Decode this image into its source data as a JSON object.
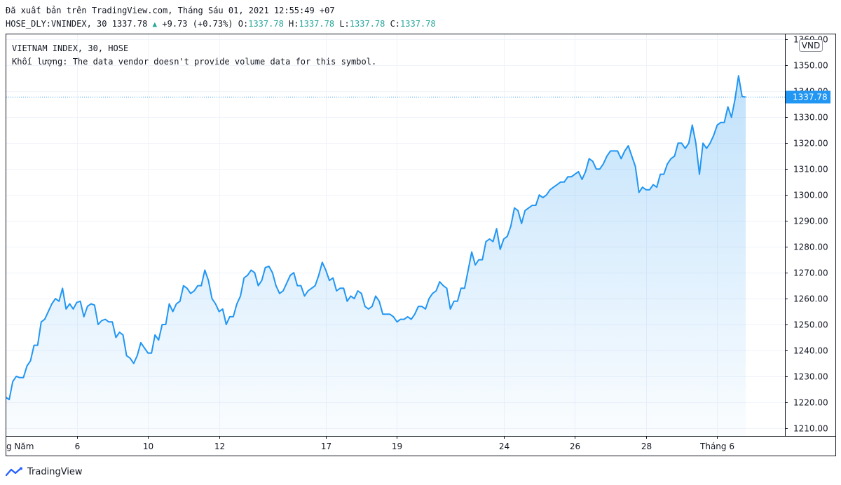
{
  "header": {
    "published_line": "Đã xuất bản trên TradingView.com, Tháng Sáu 01, 2021 12:55:49 +07",
    "symbol_interval": "HOSE_DLY:VNINDEX, 30 1337.78",
    "change": "+9.73 (+0.73%)",
    "o_label": "O:",
    "o_value": "1337.78",
    "h_label": "H:",
    "h_value": "1337.78",
    "l_label": "L:",
    "l_value": "1337.78",
    "c_label": "C:",
    "c_value": "1337.78"
  },
  "legend": {
    "title": "VIETNAM INDEX, 30, HOSE",
    "volume_note": "Khối lượng: The data vendor doesn't provide volume data for this symbol."
  },
  "currency_badge": "VND",
  "last_price_label": "1337.78",
  "footer": {
    "brand": "TradingView"
  },
  "colors": {
    "line": "#2196f3",
    "area": "#2196f3",
    "green": "#26a69a",
    "grid": "#f0f3fa"
  },
  "chart_data": {
    "type": "area",
    "title": "VIETNAM INDEX, 30, HOSE",
    "xlabel": "",
    "ylabel": "",
    "ylim": [
      1207,
      1362
    ],
    "y_ticks": [
      1210,
      1220,
      1230,
      1240,
      1250,
      1260,
      1270,
      1280,
      1290,
      1300,
      1310,
      1320,
      1330,
      1340,
      1350,
      1360
    ],
    "y_tick_labels": [
      "1210.00",
      "1220.00",
      "1230.00",
      "1240.00",
      "1250.00",
      "1260.00",
      "1270.00",
      "1280.00",
      "1290.00",
      "1300.00",
      "1310.00",
      "1320.00",
      "1330.00",
      "1340.00",
      "1350.00",
      "1360.00"
    ],
    "x_ticks": [
      {
        "label": "g Năm",
        "index": 0
      },
      {
        "label": "6",
        "index": 20
      },
      {
        "label": "10",
        "index": 40
      },
      {
        "label": "12",
        "index": 60
      },
      {
        "label": "17",
        "index": 90
      },
      {
        "label": "19",
        "index": 110
      },
      {
        "label": "24",
        "index": 140
      },
      {
        "label": "26",
        "index": 160
      },
      {
        "label": "28",
        "index": 180
      },
      {
        "label": "Tháng 6",
        "index": 200
      }
    ],
    "last_value": 1337.78,
    "values": [
      1222,
      1221,
      1228,
      1230,
      1229.5,
      1229.5,
      1234,
      1236,
      1242,
      1242,
      1251,
      1252,
      1255,
      1258,
      1260,
      1259,
      1264,
      1256,
      1258,
      1256,
      1258.5,
      1259,
      1253,
      1257,
      1258,
      1257.5,
      1250,
      1251.5,
      1252,
      1251,
      1251,
      1245,
      1247,
      1246,
      1238,
      1237,
      1235,
      1238,
      1243,
      1241,
      1239,
      1239,
      1246,
      1244,
      1250,
      1250,
      1258,
      1255,
      1258,
      1259,
      1265,
      1264,
      1262,
      1263,
      1265,
      1265,
      1271,
      1267,
      1260,
      1258,
      1255,
      1256,
      1250,
      1253,
      1253,
      1258,
      1261,
      1268,
      1269,
      1271,
      1270,
      1265,
      1267,
      1272,
      1272.5,
      1270,
      1265,
      1262,
      1263,
      1266,
      1269,
      1270,
      1265,
      1265,
      1261,
      1263,
      1264,
      1265,
      1269,
      1274,
      1271,
      1267,
      1268,
      1263,
      1264,
      1264,
      1259,
      1261,
      1260,
      1263,
      1262,
      1257,
      1256,
      1257,
      1261,
      1259,
      1254,
      1254,
      1254,
      1253,
      1251,
      1252,
      1252,
      1253,
      1252,
      1254,
      1257,
      1257,
      1256,
      1260,
      1262,
      1263,
      1266.5,
      1265,
      1264,
      1256,
      1259,
      1259,
      1264,
      1264,
      1271,
      1278,
      1273,
      1275,
      1275,
      1282,
      1283,
      1282,
      1287,
      1279,
      1283,
      1284,
      1288,
      1295,
      1294,
      1289,
      1294,
      1295,
      1296,
      1296,
      1300,
      1299,
      1300,
      1302,
      1303,
      1304,
      1305,
      1305,
      1307,
      1307,
      1308,
      1309,
      1306,
      1309,
      1314,
      1313,
      1310,
      1310,
      1312,
      1315,
      1317,
      1317,
      1317,
      1314,
      1317,
      1319,
      1315,
      1311,
      1301,
      1303,
      1302,
      1302,
      1304,
      1303,
      1308,
      1308,
      1312,
      1314,
      1315,
      1320,
      1320,
      1318,
      1320,
      1327,
      1320,
      1308,
      1320,
      1318,
      1320,
      1323,
      1327,
      1328,
      1328,
      1334,
      1330,
      1337,
      1346,
      1338,
      1337.78
    ]
  }
}
